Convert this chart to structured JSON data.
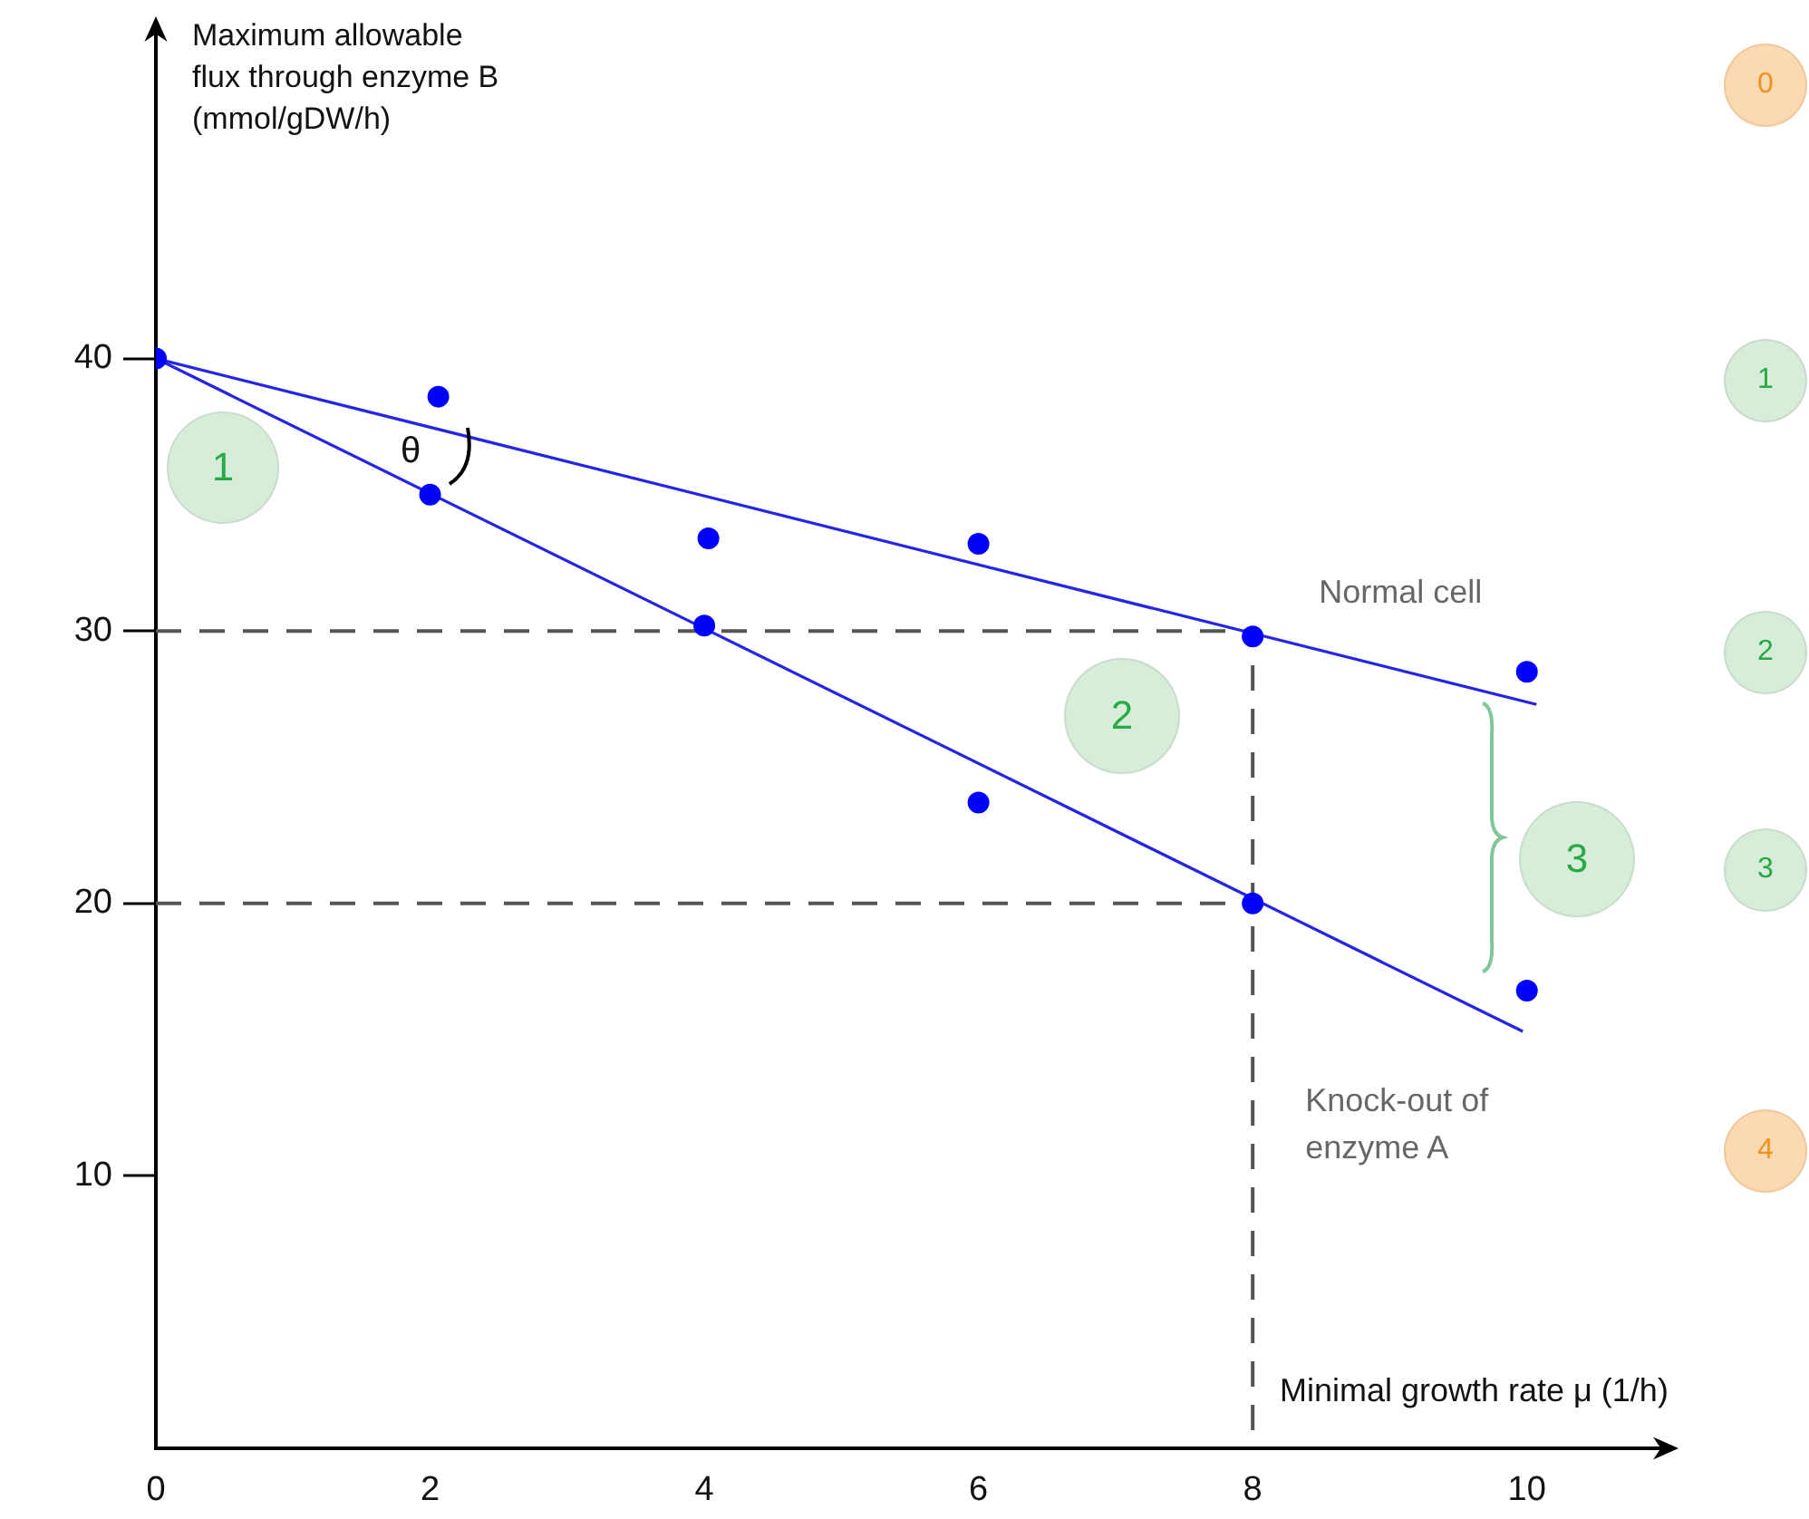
{
  "chart_data": {
    "type": "scatter",
    "xlabel": "Minimal growth rate μ (1/h)",
    "ylabel": "Maximum allowable flux through enzyme B (mmol/gDW/h)",
    "xlim": [
      0,
      11
    ],
    "ylim": [
      0,
      52
    ],
    "xticks": [
      0,
      2,
      4,
      6,
      8,
      10
    ],
    "yticks": [
      10,
      20,
      30,
      40
    ],
    "grid": false,
    "legend": false,
    "series": [
      {
        "type": "scatter",
        "marker": "circle",
        "color": "#0000ff",
        "x": [
          0,
          2.06,
          2,
          4.03,
          4,
          6,
          6,
          8,
          8,
          10,
          10
        ],
        "values": [
          40,
          38.6,
          35,
          33.4,
          30.2,
          33.2,
          23.7,
          29.8,
          20,
          28.5,
          16.8
        ]
      },
      {
        "type": "line",
        "marker": "none",
        "name": "Normal cell",
        "color": "#2424e6",
        "x": [
          0,
          10.07
        ],
        "values": [
          40,
          27.3
        ],
        "line_style": "solid"
      },
      {
        "type": "line",
        "marker": "none",
        "name": "Knock-out of enzyme A",
        "color": "#2424e6",
        "x": [
          0,
          9.97
        ],
        "values": [
          40,
          15.3
        ],
        "line_style": "solid"
      },
      {
        "type": "line",
        "marker": "none",
        "color": "#555555",
        "x": [
          0,
          8,
          8
        ],
        "values": [
          30,
          30,
          0
        ],
        "line_style": "dashed"
      },
      {
        "type": "line",
        "marker": "none",
        "color": "#555555",
        "x": [
          0,
          8
        ],
        "values": [
          20,
          20
        ],
        "line_style": "dashed"
      }
    ],
    "annotations": [
      "θ",
      "1",
      "2",
      "3",
      "0",
      "1",
      "2",
      "3",
      "4"
    ]
  }
}
